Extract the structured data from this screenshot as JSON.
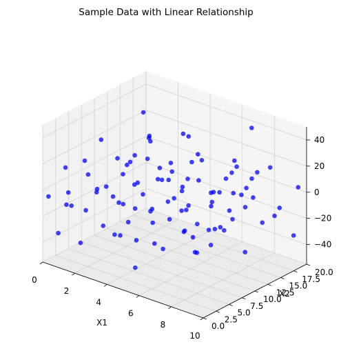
{
  "chart_data": {
    "type": "scatter",
    "projection": "3d",
    "title": "Sample Data with Linear Relationship",
    "xlabel": "X1",
    "ylabel": "X2",
    "zlabel": "",
    "xlim": [
      0,
      10
    ],
    "ylim": [
      0,
      20
    ],
    "zlim": [
      -55,
      50
    ],
    "xticks": [
      "0",
      "2",
      "4",
      "6",
      "8",
      "10"
    ],
    "yticks": [
      "0.0",
      "2.5",
      "5.0",
      "7.5",
      "10.0",
      "12.5",
      "15.0",
      "17.5",
      "20.0"
    ],
    "zticks": [
      "−40",
      "−20",
      "0",
      "20",
      "40"
    ],
    "grid": true,
    "legend": "none",
    "marker_color": "#0000ff",
    "series": [
      {
        "values": [
          [
            0.2,
            0.5,
            -5
          ],
          [
            0.8,
            2.1,
            -12
          ],
          [
            1.5,
            0.3,
            4
          ],
          [
            2.3,
            1.2,
            -8
          ],
          [
            3.1,
            0.8,
            10
          ],
          [
            4.0,
            1.5,
            -20
          ],
          [
            5.2,
            0.4,
            -3
          ],
          [
            6.1,
            1.9,
            6
          ],
          [
            7.3,
            0.6,
            -15
          ],
          [
            8.4,
            1.4,
            2
          ],
          [
            9.2,
            0.9,
            -10
          ],
          [
            9.8,
            1.7,
            8
          ],
          [
            0.5,
            4.0,
            -18
          ],
          [
            1.7,
            3.5,
            12
          ],
          [
            2.9,
            4.6,
            -2
          ],
          [
            3.8,
            3.2,
            -25
          ],
          [
            4.7,
            4.8,
            7
          ],
          [
            5.6,
            3.9,
            -9
          ],
          [
            6.8,
            4.3,
            14
          ],
          [
            7.7,
            3.4,
            -6
          ],
          [
            8.9,
            4.9,
            -14
          ],
          [
            9.5,
            3.8,
            3
          ],
          [
            0.3,
            7.2,
            9
          ],
          [
            1.3,
            6.5,
            -7
          ],
          [
            2.5,
            7.8,
            -16
          ],
          [
            3.5,
            6.9,
            5
          ],
          [
            4.4,
            7.5,
            -11
          ],
          [
            5.4,
            6.3,
            18
          ],
          [
            6.4,
            7.9,
            -4
          ],
          [
            7.2,
            6.7,
            -19
          ],
          [
            8.2,
            7.3,
            11
          ],
          [
            9.1,
            6.1,
            -2
          ],
          [
            0.9,
            9.5,
            -13
          ],
          [
            1.9,
            10.4,
            6
          ],
          [
            2.8,
            9.2,
            -21
          ],
          [
            3.7,
            10.8,
            2
          ],
          [
            4.9,
            9.8,
            15
          ],
          [
            5.8,
            10.2,
            -8
          ],
          [
            6.6,
            9.4,
            -17
          ],
          [
            7.6,
            10.6,
            9
          ],
          [
            8.7,
            9.7,
            -5
          ],
          [
            9.6,
            10.9,
            13
          ],
          [
            0.6,
            12.6,
            1
          ],
          [
            1.6,
            13.4,
            -15
          ],
          [
            2.6,
            12.2,
            10
          ],
          [
            3.4,
            13.8,
            -6
          ],
          [
            4.5,
            12.9,
            -23
          ],
          [
            5.5,
            13.1,
            4
          ],
          [
            6.5,
            12.4,
            -10
          ],
          [
            7.4,
            13.6,
            17
          ],
          [
            8.5,
            12.8,
            -3
          ],
          [
            9.4,
            13.3,
            -12
          ],
          [
            0.4,
            15.7,
            -9
          ],
          [
            1.4,
            16.3,
            14
          ],
          [
            2.4,
            15.2,
            -4
          ],
          [
            3.3,
            16.8,
            -18
          ],
          [
            4.3,
            15.5,
            8
          ],
          [
            5.3,
            16.6,
            -13
          ],
          [
            6.3,
            15.9,
            3
          ],
          [
            7.1,
            16.4,
            -7
          ],
          [
            8.1,
            15.3,
            12
          ],
          [
            9.0,
            16.9,
            -16
          ],
          [
            0.7,
            18.4,
            5
          ],
          [
            1.8,
            19.2,
            -11
          ],
          [
            2.7,
            18.8,
            16
          ],
          [
            3.6,
            19.6,
            -2
          ],
          [
            4.6,
            18.3,
            -20
          ],
          [
            5.7,
            19.4,
            7
          ],
          [
            6.7,
            18.6,
            -8
          ],
          [
            7.8,
            19.8,
            10
          ],
          [
            8.8,
            18.5,
            -14
          ],
          [
            9.7,
            19.3,
            4
          ],
          [
            1.1,
            1.0,
            20
          ],
          [
            2.0,
            5.5,
            -30
          ],
          [
            3.0,
            8.5,
            22
          ],
          [
            4.2,
            11.5,
            -28
          ],
          [
            5.0,
            14.5,
            19
          ],
          [
            6.0,
            17.5,
            -26
          ],
          [
            7.0,
            2.5,
            16
          ],
          [
            8.0,
            5.0,
            -24
          ],
          [
            9.3,
            8.0,
            21
          ],
          [
            1.2,
            11.0,
            -27
          ],
          [
            2.2,
            14.0,
            18
          ],
          [
            3.2,
            17.0,
            -22
          ],
          [
            4.1,
            2.8,
            24
          ],
          [
            5.1,
            5.8,
            -31
          ],
          [
            6.2,
            8.8,
            17
          ],
          [
            7.5,
            11.8,
            -23
          ],
          [
            8.6,
            14.8,
            20
          ],
          [
            9.9,
            17.8,
            -29
          ],
          [
            5.9,
            9.9,
            46
          ],
          [
            6.9,
            19.0,
            38
          ],
          [
            0.1,
            2.7,
            -38
          ],
          [
            4.8,
            3.0,
            -45
          ],
          [
            2.1,
            0.8,
            -33
          ],
          [
            1.0,
            8.2,
            26
          ],
          [
            3.9,
            6.0,
            -34
          ],
          [
            7.9,
            13.0,
            25
          ],
          [
            9.0,
            11.2,
            -32
          ],
          [
            0.8,
            17.0,
            28
          ]
        ]
      }
    ]
  }
}
